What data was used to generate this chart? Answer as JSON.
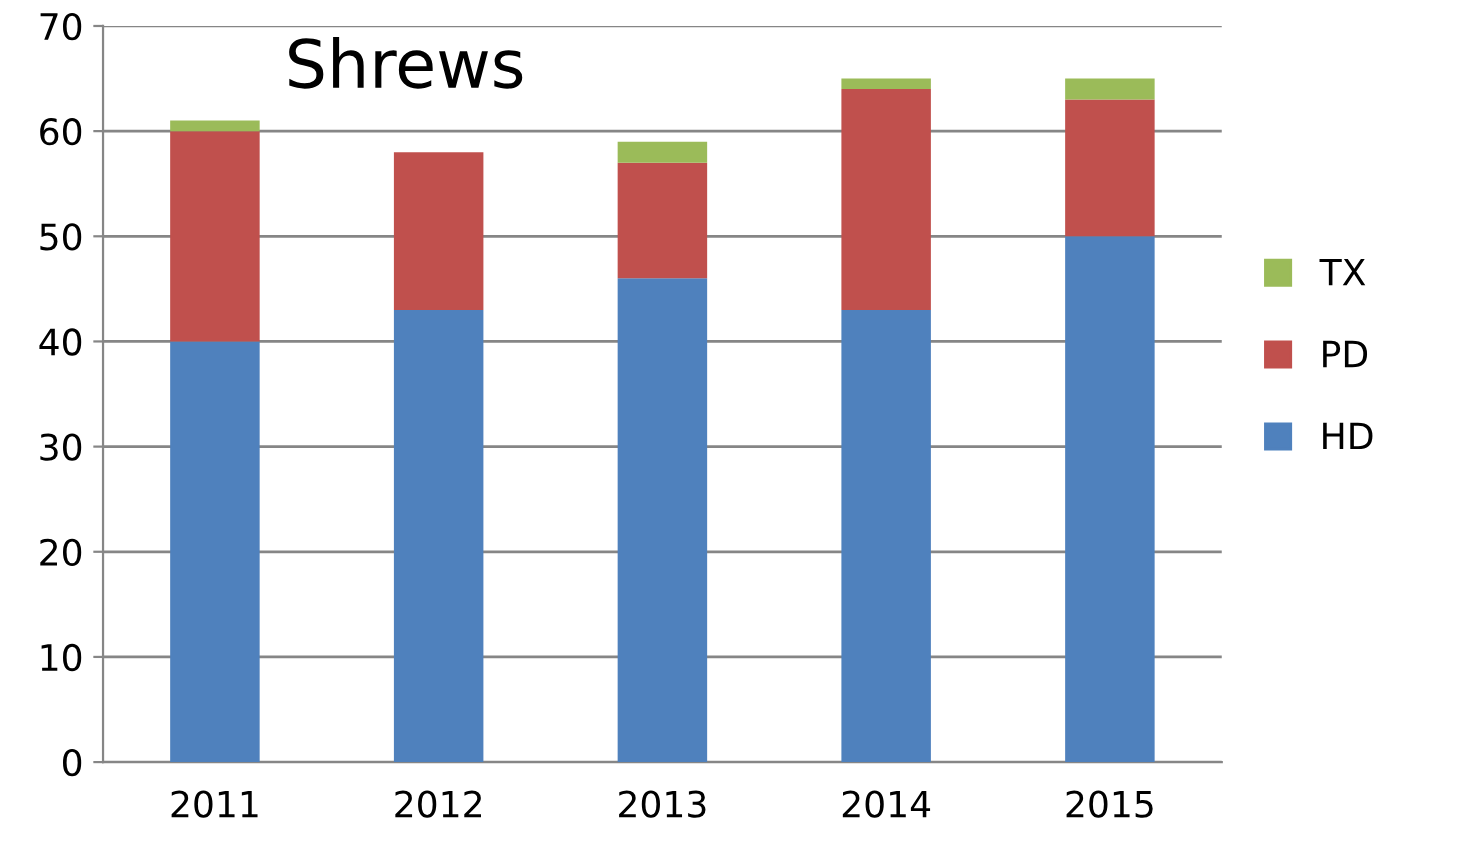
{
  "chart_data": {
    "type": "bar",
    "title": "Shrews",
    "stacked": true,
    "categories": [
      "2011",
      "2012",
      "2013",
      "2014",
      "2015"
    ],
    "series": [
      {
        "name": "HD",
        "color": "#4f81bd",
        "values": [
          40,
          43,
          46,
          43,
          50
        ]
      },
      {
        "name": "PD",
        "color": "#c0504d",
        "values": [
          20,
          15,
          11,
          21,
          13
        ]
      },
      {
        "name": "TX",
        "color": "#9bbb59",
        "values": [
          1,
          0,
          2,
          1,
          2
        ]
      }
    ],
    "ylim": [
      0,
      70
    ],
    "yticks": [
      0,
      10,
      20,
      30,
      40,
      50,
      60,
      70
    ],
    "grid": "y",
    "legend": "right"
  }
}
